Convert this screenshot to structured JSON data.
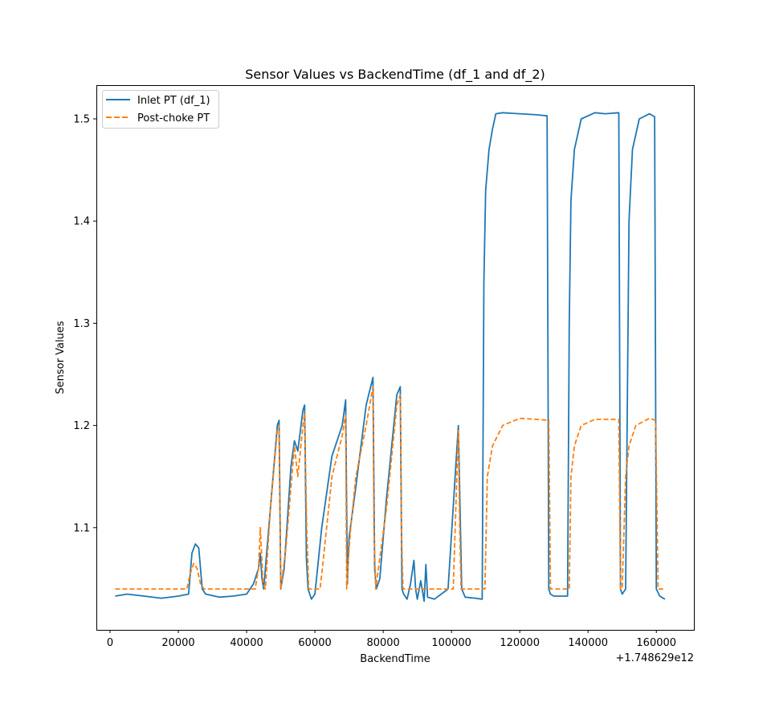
{
  "chart_data": {
    "type": "line",
    "title": "Sensor Values vs BackendTime (df_1 and df_2)",
    "xlabel": "BackendTime",
    "ylabel": "Sensor Values",
    "x_offset_label": "+1.748629e12",
    "xlim": [
      -4000,
      171000
    ],
    "ylim": [
      1.0,
      1.533
    ],
    "x_ticks": [
      0,
      20000,
      40000,
      60000,
      80000,
      100000,
      120000,
      140000,
      160000
    ],
    "x_tick_labels": [
      "0",
      "20000",
      "40000",
      "60000",
      "80000",
      "100000",
      "120000",
      "140000",
      "160000"
    ],
    "y_ticks": [
      1.1,
      1.2,
      1.3,
      1.4,
      1.5
    ],
    "y_tick_labels": [
      "1.1",
      "1.2",
      "1.3",
      "1.4",
      "1.5"
    ],
    "grid": false,
    "legend_position": "top-left",
    "series": [
      {
        "name": "Inlet PT (df_1)",
        "color": "#1f77b4",
        "style": "solid",
        "x": [
          1500,
          5000,
          10000,
          15000,
          20000,
          23000,
          24000,
          25000,
          26000,
          27000,
          28000,
          32000,
          36000,
          40000,
          42000,
          43500,
          44000,
          44500,
          45000,
          47000,
          49000,
          49500,
          50000,
          51000,
          53000,
          54000,
          55000,
          56500,
          57000,
          57500,
          58000,
          59000,
          60000,
          62000,
          65000,
          68000,
          69000,
          69500,
          70000,
          72000,
          75000,
          77000,
          77500,
          78000,
          79000,
          81000,
          84000,
          85000,
          85500,
          86000,
          87000,
          88000,
          89000,
          89500,
          90000,
          91000,
          92000,
          92500,
          93000,
          95000,
          99000,
          102000,
          103000,
          104000,
          107000,
          109000,
          109500,
          110000,
          111000,
          112000,
          113000,
          115000,
          120000,
          125000,
          128000,
          128500,
          129000,
          130000,
          134000,
          134500,
          135000,
          136000,
          138000,
          142000,
          145000,
          149000,
          149500,
          150000,
          151000,
          152000,
          153000,
          155000,
          158000,
          159500,
          160000,
          161000,
          162500
        ],
        "y": [
          1.033,
          1.035,
          1.033,
          1.031,
          1.033,
          1.035,
          1.075,
          1.084,
          1.08,
          1.04,
          1.035,
          1.032,
          1.033,
          1.035,
          1.045,
          1.06,
          1.075,
          1.05,
          1.04,
          1.12,
          1.2,
          1.205,
          1.04,
          1.06,
          1.16,
          1.185,
          1.175,
          1.215,
          1.22,
          1.07,
          1.04,
          1.03,
          1.035,
          1.1,
          1.17,
          1.2,
          1.225,
          1.045,
          1.09,
          1.14,
          1.22,
          1.247,
          1.06,
          1.04,
          1.05,
          1.13,
          1.23,
          1.238,
          1.04,
          1.035,
          1.03,
          1.045,
          1.068,
          1.04,
          1.03,
          1.048,
          1.028,
          1.064,
          1.032,
          1.03,
          1.04,
          1.2,
          1.04,
          1.032,
          1.031,
          1.03,
          1.34,
          1.43,
          1.47,
          1.49,
          1.505,
          1.506,
          1.505,
          1.504,
          1.503,
          1.04,
          1.035,
          1.033,
          1.033,
          1.3,
          1.42,
          1.47,
          1.5,
          1.506,
          1.505,
          1.506,
          1.04,
          1.035,
          1.04,
          1.4,
          1.47,
          1.5,
          1.505,
          1.502,
          1.04,
          1.033,
          1.03
        ]
      },
      {
        "name": "Post-choke PT",
        "color": "#ff7f0e",
        "style": "dashed",
        "x": [
          1500,
          22500,
          23500,
          24500,
          25500,
          26500,
          27500,
          42500,
          43500,
          44000,
          44800,
          45500,
          47000,
          49000,
          49500,
          50000,
          51500,
          53000,
          54000,
          55000,
          56500,
          57000,
          57600,
          58200,
          61500,
          62500,
          65000,
          68000,
          69000,
          69300,
          69800,
          70500,
          72000,
          75000,
          77000,
          77300,
          77800,
          81000,
          84000,
          85000,
          85300,
          85800,
          100500,
          102000,
          102400,
          102800,
          109800,
          110500,
          112000,
          115000,
          120000,
          125000,
          128500,
          129000,
          129800,
          134500,
          135000,
          136000,
          138000,
          142000,
          149000,
          149500,
          150000,
          151000,
          152000,
          154000,
          158000,
          159800,
          160500,
          162500
        ],
        "y": [
          1.04,
          1.04,
          1.055,
          1.065,
          1.06,
          1.045,
          1.04,
          1.04,
          1.06,
          1.1,
          1.045,
          1.04,
          1.12,
          1.195,
          1.2,
          1.04,
          1.08,
          1.14,
          1.18,
          1.15,
          1.2,
          1.212,
          1.1,
          1.04,
          1.04,
          1.07,
          1.15,
          1.19,
          1.21,
          1.04,
          1.07,
          1.1,
          1.15,
          1.2,
          1.238,
          1.1,
          1.04,
          1.12,
          1.22,
          1.23,
          1.1,
          1.04,
          1.04,
          1.195,
          1.1,
          1.04,
          1.04,
          1.15,
          1.18,
          1.2,
          1.207,
          1.206,
          1.205,
          1.04,
          1.04,
          1.04,
          1.15,
          1.18,
          1.2,
          1.206,
          1.206,
          1.04,
          1.04,
          1.15,
          1.18,
          1.2,
          1.207,
          1.205,
          1.04,
          1.04
        ]
      }
    ]
  }
}
